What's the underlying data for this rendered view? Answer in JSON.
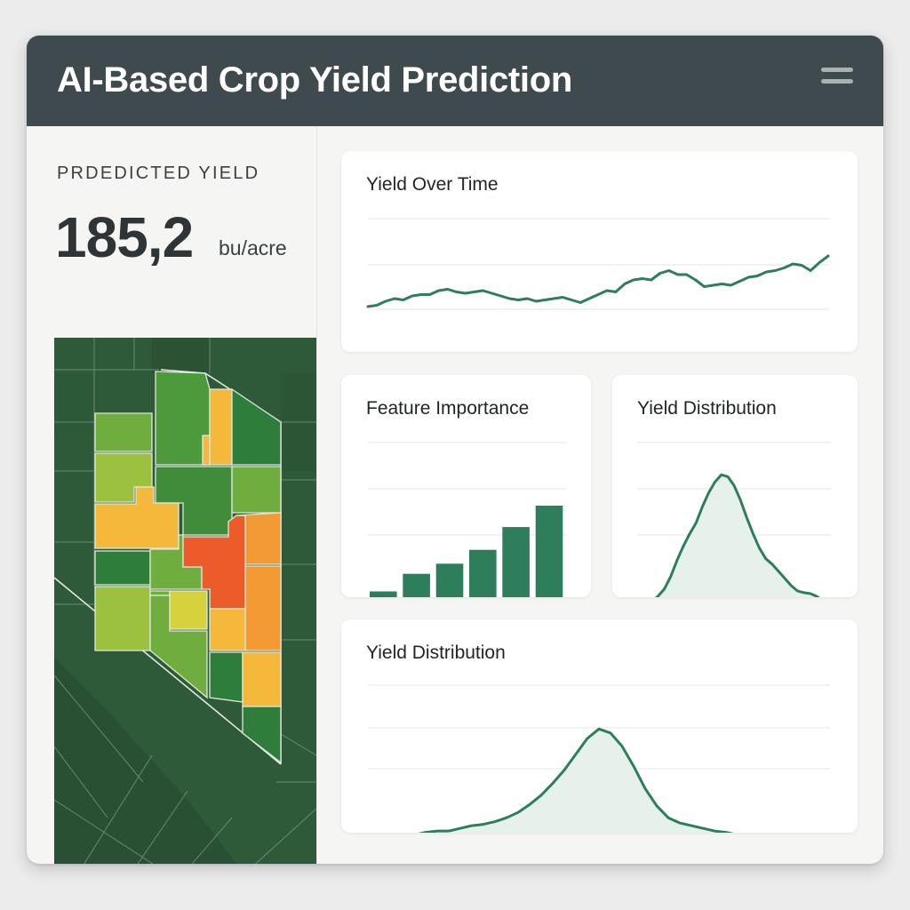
{
  "app": {
    "title": "AI-Based Crop Yield Prediction",
    "menu_icon": "hamburger-menu-icon"
  },
  "prediction": {
    "label": "PRDEDICTED YIELD",
    "value": "185,2",
    "unit": "bu/acre"
  },
  "map": {
    "field_colors": [
      "#2e7d3a",
      "#4c9a3c",
      "#6fae3e",
      "#9cc13e",
      "#d5d23e",
      "#f4b83a",
      "#f39a34",
      "#ec5b2a"
    ],
    "background_color": "#2f5a3a"
  },
  "colors": {
    "accent": "#2e7d5b",
    "fill": "#e6f1ec",
    "header": "#3f4a4e"
  },
  "cards": {
    "yield_over_time": {
      "title": "Yield Over Time"
    },
    "feature_importance": {
      "title": "Feature Importance"
    },
    "yield_distribution_small": {
      "title": "Yield Distribution"
    },
    "yield_distribution_large": {
      "title": "Yield Distribution"
    }
  },
  "chart_data": [
    {
      "type": "line",
      "values": [
        3.0,
        3.1,
        3.4,
        3.6,
        3.5,
        3.8,
        3.9,
        3.9,
        4.2,
        4.3,
        4.1,
        4.0,
        4.1,
        4.2,
        4.0,
        3.8,
        3.6,
        3.5,
        3.6,
        3.4,
        3.5,
        3.6,
        3.7,
        3.5,
        3.3,
        3.6,
        3.9,
        4.2,
        4.1,
        4.7,
        5.0,
        5.1,
        5.0,
        5.5,
        5.7,
        5.4,
        5.4,
        5.0,
        4.5,
        4.6,
        4.7,
        4.6,
        4.9,
        5.2,
        5.3,
        5.6,
        5.7,
        5.9,
        6.2,
        6.1,
        5.7,
        6.3,
        6.8
      ],
      "ylim": [
        0,
        10
      ]
    },
    {
      "type": "bar",
      "values": [
        1.3,
        2.7,
        3.5,
        4.6,
        6.4,
        8.1
      ],
      "ylim": [
        0,
        10
      ]
    },
    {
      "type": "area",
      "x": [
        0,
        1,
        2,
        3,
        4,
        5,
        6,
        7,
        8,
        9,
        10,
        11,
        12,
        13,
        14,
        15,
        16,
        17,
        18,
        19,
        20,
        21,
        22,
        23,
        24,
        25,
        26,
        27,
        28,
        29,
        30
      ],
      "values": [
        0.1,
        0.12,
        0.3,
        0.6,
        1.0,
        1.7,
        2.6,
        3.4,
        4.1,
        4.7,
        5.6,
        6.4,
        7.0,
        7.4,
        7.3,
        6.8,
        6.0,
        5.0,
        4.1,
        3.3,
        2.7,
        2.4,
        2.0,
        1.6,
        1.2,
        0.9,
        0.8,
        0.75,
        0.6,
        0.35,
        0.1
      ],
      "ylim": [
        0,
        10
      ]
    },
    {
      "type": "area",
      "x": [
        0,
        1,
        2,
        3,
        4,
        5,
        6,
        7,
        8,
        9,
        10,
        11,
        12,
        13,
        14,
        15,
        16,
        17,
        18,
        19,
        20,
        21,
        22,
        23,
        24,
        25,
        26,
        27,
        28,
        29,
        30,
        31,
        32,
        33,
        34,
        35,
        36,
        37,
        38,
        39,
        40
      ],
      "values": [
        0.1,
        0.1,
        0.15,
        0.2,
        0.3,
        0.5,
        0.6,
        0.6,
        0.8,
        1.0,
        1.1,
        1.3,
        1.6,
        2.0,
        2.6,
        3.3,
        4.2,
        5.2,
        6.4,
        7.6,
        8.3,
        8.0,
        7.0,
        5.5,
        3.8,
        2.5,
        1.6,
        1.2,
        1.0,
        0.8,
        0.6,
        0.5,
        0.3,
        0.2,
        0.15,
        0.1,
        0.1,
        0.1,
        0.05,
        0.05,
        0.05
      ],
      "ylim": [
        0,
        10
      ]
    }
  ]
}
